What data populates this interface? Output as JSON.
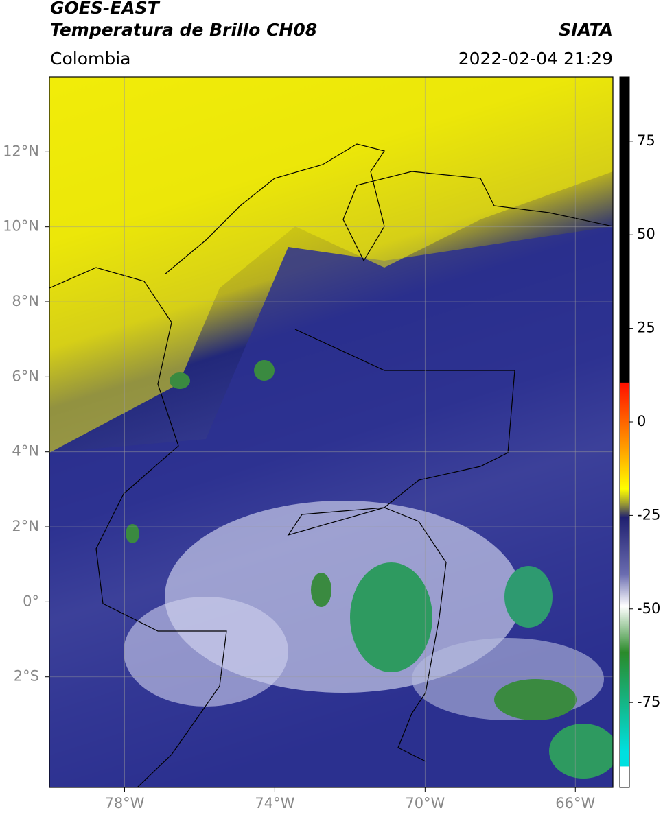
{
  "header": {
    "title": "GOES-EAST",
    "subtitle": "Temperatura de Brillo CH08",
    "source": "SIATA",
    "region": "Colombia",
    "datetime": "2022-02-04 21:29"
  },
  "map": {
    "lonlim": [
      -80,
      -65
    ],
    "latlim": [
      -4.95,
      14
    ],
    "lonticks": [
      {
        "value": -78,
        "label": "78°W"
      },
      {
        "value": -74,
        "label": "74°W"
      },
      {
        "value": -70,
        "label": "70°W"
      },
      {
        "value": -66,
        "label": "66°W"
      }
    ],
    "latticks": [
      {
        "value": 12,
        "label": "12°N"
      },
      {
        "value": 10,
        "label": "10°N"
      },
      {
        "value": 8,
        "label": "8°N"
      },
      {
        "value": 6,
        "label": "6°N"
      },
      {
        "value": 4,
        "label": "4°N"
      },
      {
        "value": 2,
        "label": "2°N"
      },
      {
        "value": 0,
        "label": "0°"
      },
      {
        "value": -2,
        "label": "2°S"
      }
    ],
    "grid": true
  },
  "colorbar": {
    "lim": [
      -97.7,
      92.2
    ],
    "ticks": [
      75,
      50,
      25,
      0,
      -25,
      -50,
      -75
    ]
  }
}
